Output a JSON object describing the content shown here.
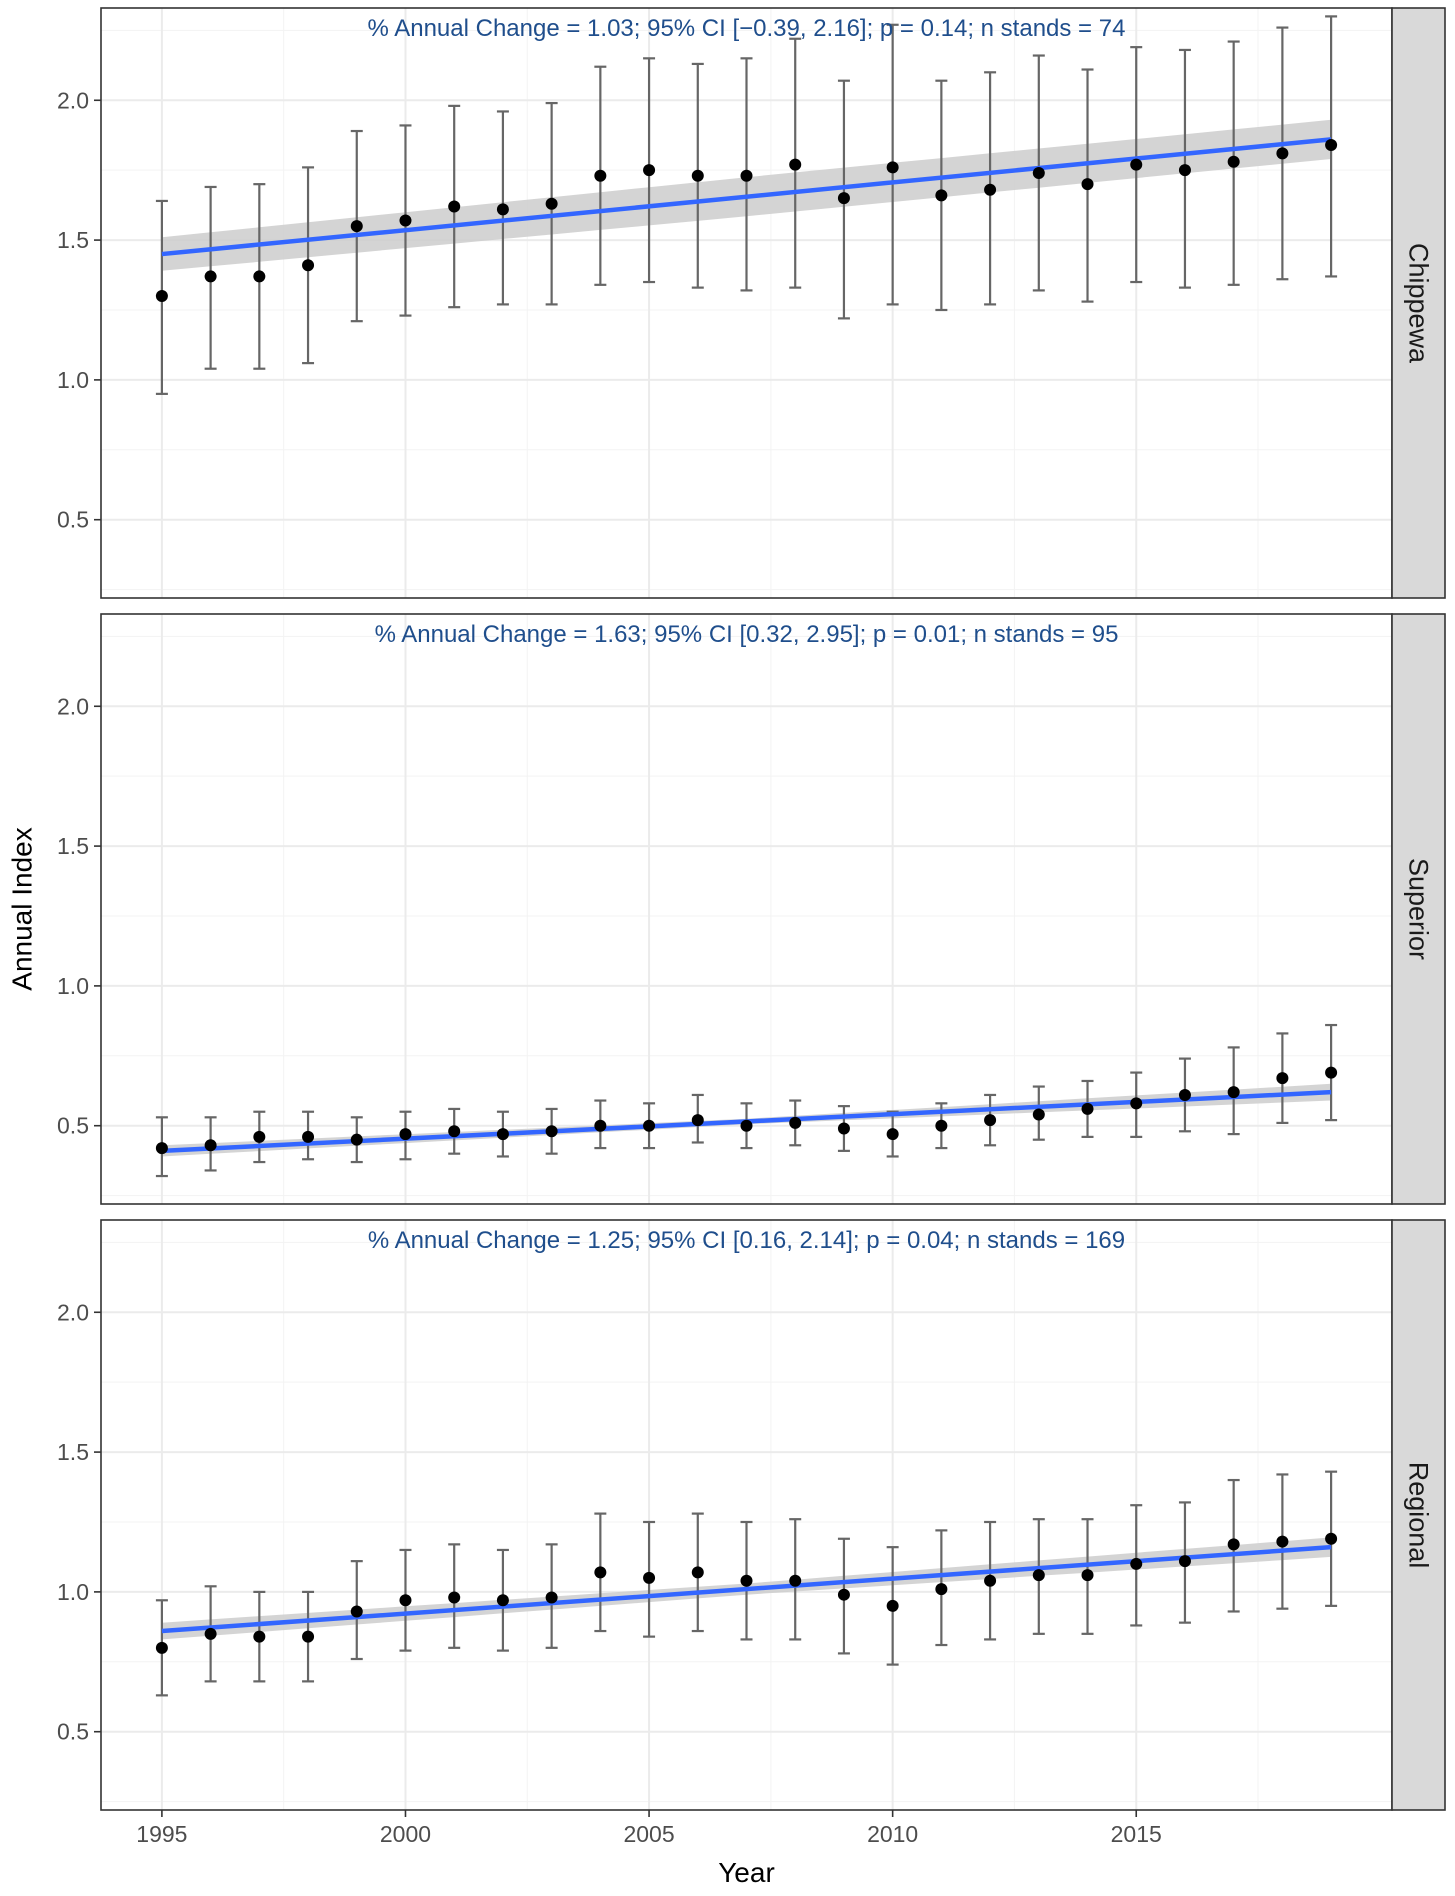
{
  "chart_data": {
    "type": "scatter",
    "xlabel": "Year",
    "ylabel": "Annual Index",
    "xlim": [
      1993.75,
      2020.25
    ],
    "ylim": [
      0.22,
      2.33
    ],
    "x_ticks": [
      1995,
      2000,
      2005,
      2010,
      2015
    ],
    "x_tick_labels": [
      "1995",
      "2000",
      "2005",
      "2010",
      "2015"
    ],
    "y_ticks": [
      0.5,
      1.0,
      1.5,
      2.0
    ],
    "y_tick_labels": [
      "0.5",
      "1.0",
      "1.5",
      "2.0"
    ],
    "grid": true,
    "colors": {
      "trend_line": "#3366ff",
      "ci_band": "#cccccc",
      "error_bar": "#666666",
      "point": "#000000",
      "annotation": "#1f4e8c",
      "strip_bg": "#d9d9d9",
      "grid": "#ebebeb"
    },
    "x": [
      1995,
      1996,
      1997,
      1998,
      1999,
      2000,
      2001,
      2002,
      2003,
      2004,
      2005,
      2006,
      2007,
      2008,
      2009,
      2010,
      2011,
      2012,
      2013,
      2014,
      2015,
      2016,
      2017,
      2018,
      2019
    ],
    "panels": [
      {
        "strip_label": "Chippewa",
        "annotation": "% Annual Change = 1.03; 95% CI [−0.39, 2.16]; p = 0.14; n stands = 74",
        "values": [
          1.3,
          1.37,
          1.37,
          1.41,
          1.55,
          1.57,
          1.62,
          1.61,
          1.63,
          1.73,
          1.75,
          1.73,
          1.73,
          1.77,
          1.65,
          1.76,
          1.66,
          1.68,
          1.74,
          1.7,
          1.77,
          1.75,
          1.78,
          1.81,
          1.84
        ],
        "lower": [
          0.95,
          1.04,
          1.04,
          1.06,
          1.21,
          1.23,
          1.26,
          1.27,
          1.27,
          1.34,
          1.35,
          1.33,
          1.32,
          1.33,
          1.22,
          1.27,
          1.25,
          1.27,
          1.32,
          1.28,
          1.35,
          1.33,
          1.34,
          1.36,
          1.37
        ],
        "upper": [
          1.64,
          1.69,
          1.7,
          1.76,
          1.89,
          1.91,
          1.98,
          1.96,
          1.99,
          2.12,
          2.15,
          2.13,
          2.15,
          2.22,
          2.07,
          2.27,
          2.07,
          2.1,
          2.16,
          2.11,
          2.19,
          2.18,
          2.21,
          2.26,
          2.3
        ],
        "trend": [
          1.45,
          1.86
        ],
        "trend_band": [
          0.06,
          0.07,
          0.07
        ]
      },
      {
        "strip_label": "Superior",
        "annotation": "% Annual Change = 1.63; 95% CI [0.32, 2.95]; p = 0.01; n stands = 95",
        "values": [
          0.42,
          0.43,
          0.46,
          0.46,
          0.45,
          0.47,
          0.48,
          0.47,
          0.48,
          0.5,
          0.5,
          0.52,
          0.5,
          0.51,
          0.49,
          0.47,
          0.5,
          0.52,
          0.54,
          0.56,
          0.58,
          0.61,
          0.62,
          0.67,
          0.69
        ],
        "lower": [
          0.32,
          0.34,
          0.37,
          0.38,
          0.37,
          0.38,
          0.4,
          0.39,
          0.4,
          0.42,
          0.42,
          0.44,
          0.42,
          0.43,
          0.41,
          0.39,
          0.42,
          0.43,
          0.45,
          0.46,
          0.46,
          0.48,
          0.47,
          0.51,
          0.52
        ],
        "upper": [
          0.53,
          0.53,
          0.55,
          0.55,
          0.53,
          0.55,
          0.56,
          0.55,
          0.56,
          0.59,
          0.58,
          0.61,
          0.58,
          0.59,
          0.57,
          0.55,
          0.58,
          0.61,
          0.64,
          0.66,
          0.69,
          0.74,
          0.78,
          0.83,
          0.86
        ],
        "trend": [
          0.41,
          0.62
        ],
        "trend_band": [
          0.02,
          0.01,
          0.03
        ]
      },
      {
        "strip_label": "Regional",
        "annotation": "% Annual Change = 1.25; 95% CI [0.16, 2.14]; p = 0.04; n stands = 169",
        "values": [
          0.8,
          0.85,
          0.84,
          0.84,
          0.93,
          0.97,
          0.98,
          0.97,
          0.98,
          1.07,
          1.05,
          1.07,
          1.04,
          1.04,
          0.99,
          0.95,
          1.01,
          1.04,
          1.06,
          1.06,
          1.1,
          1.11,
          1.17,
          1.18,
          1.19
        ],
        "lower": [
          0.63,
          0.68,
          0.68,
          0.68,
          0.76,
          0.79,
          0.8,
          0.79,
          0.8,
          0.86,
          0.84,
          0.86,
          0.83,
          0.83,
          0.78,
          0.74,
          0.81,
          0.83,
          0.85,
          0.85,
          0.88,
          0.89,
          0.93,
          0.94,
          0.95
        ],
        "upper": [
          0.97,
          1.02,
          1.0,
          1.0,
          1.11,
          1.15,
          1.17,
          1.15,
          1.17,
          1.28,
          1.25,
          1.28,
          1.25,
          1.26,
          1.19,
          1.16,
          1.22,
          1.25,
          1.26,
          1.26,
          1.31,
          1.32,
          1.4,
          1.42,
          1.43
        ],
        "trend": [
          0.86,
          1.16
        ],
        "trend_band": [
          0.03,
          0.02,
          0.035
        ]
      }
    ]
  }
}
